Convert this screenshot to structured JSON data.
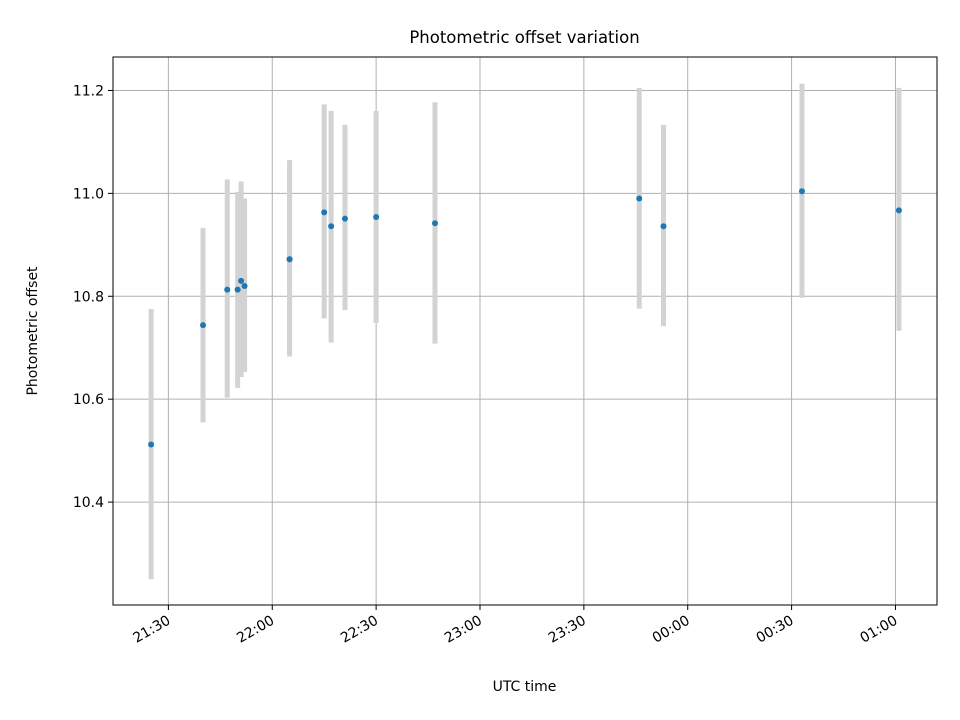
{
  "chart_data": {
    "type": "scatter",
    "title": "Photometric offset variation",
    "xlabel": "UTC time",
    "ylabel": "Photometric offset",
    "x_format": "time-of-day (HH:MM), axis spans midnight; after-midnight times are next day",
    "xlim": [
      "21:14",
      "01:12"
    ],
    "ylim": [
      10.2,
      11.265
    ],
    "x_ticks": [
      "21:30",
      "22:00",
      "22:30",
      "23:00",
      "23:30",
      "00:00",
      "00:30",
      "01:00"
    ],
    "y_ticks": [
      10.4,
      10.6,
      10.8,
      11.0,
      11.2
    ],
    "y_tick_labels": [
      "10.4",
      "10.6",
      "10.8",
      "11.0",
      "11.2"
    ],
    "grid": true,
    "marker_color": "#1f77b4",
    "errorbar_color": "#d3d3d3",
    "series": [
      {
        "points": [
          {
            "time": "21:25",
            "y": 10.512,
            "ylow": 10.25,
            "yhigh": 10.775
          },
          {
            "time": "21:40",
            "y": 10.744,
            "ylow": 10.555,
            "yhigh": 10.933
          },
          {
            "time": "21:47",
            "y": 10.813,
            "ylow": 10.603,
            "yhigh": 11.027
          },
          {
            "time": "21:50",
            "y": 10.813,
            "ylow": 10.622,
            "yhigh": 11.003
          },
          {
            "time": "21:51",
            "y": 10.83,
            "ylow": 10.643,
            "yhigh": 11.023
          },
          {
            "time": "21:52",
            "y": 10.82,
            "ylow": 10.653,
            "yhigh": 10.99
          },
          {
            "time": "22:05",
            "y": 10.872,
            "ylow": 10.69,
            "yhigh": 11.052
          },
          {
            "time": "22:05",
            "y": 10.872,
            "ylow": 10.683,
            "yhigh": 11.065
          },
          {
            "time": "22:15",
            "y": 10.963,
            "ylow": 10.757,
            "yhigh": 11.173
          },
          {
            "time": "22:17",
            "y": 10.936,
            "ylow": 10.71,
            "yhigh": 11.16
          },
          {
            "time": "22:21",
            "y": 10.951,
            "ylow": 10.773,
            "yhigh": 11.133
          },
          {
            "time": "22:30",
            "y": 10.954,
            "ylow": 10.748,
            "yhigh": 11.16
          },
          {
            "time": "22:47",
            "y": 10.942,
            "ylow": 10.708,
            "yhigh": 11.177
          },
          {
            "time": "23:46",
            "y": 10.99,
            "ylow": 10.776,
            "yhigh": 11.205
          },
          {
            "time": "23:53",
            "y": 10.936,
            "ylow": 10.742,
            "yhigh": 11.133
          },
          {
            "time": "00:33",
            "y": 11.004,
            "ylow": 10.797,
            "yhigh": 11.213
          },
          {
            "time": "01:01",
            "y": 10.967,
            "ylow": 10.733,
            "yhigh": 11.205
          }
        ]
      }
    ]
  }
}
